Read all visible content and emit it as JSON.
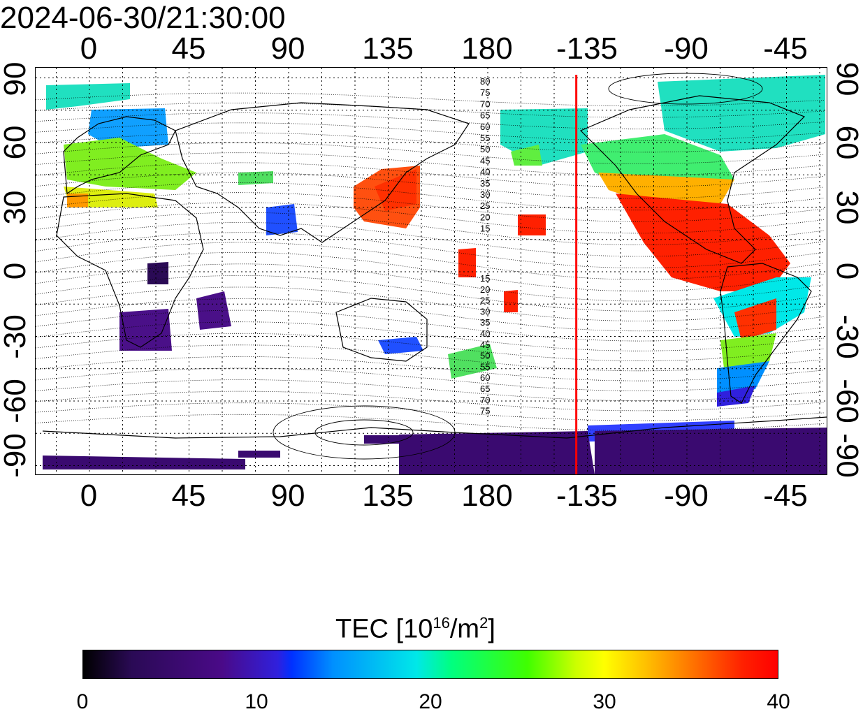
{
  "timestamp": "2024-06-30/21:30:00",
  "map": {
    "top_lon_labels": [
      "0",
      "45",
      "90",
      "135",
      "180",
      "-135",
      "-90",
      "-45"
    ],
    "bottom_lon_labels": [
      "0",
      "45",
      "90",
      "135",
      "180",
      "-135",
      "-90",
      "-45"
    ],
    "left_lat_labels": [
      "90",
      "60",
      "30",
      "0",
      "-30",
      "-60",
      "-90"
    ],
    "right_lat_labels": [
      "90",
      "60",
      "30",
      "0",
      "-30",
      "-60",
      "-90"
    ],
    "contour_labels_north": [
      "80",
      "75",
      "70",
      "65",
      "60",
      "55",
      "50",
      "45",
      "40",
      "35",
      "30",
      "25",
      "20",
      "15"
    ],
    "contour_labels_south": [
      "15",
      "20",
      "25",
      "30",
      "35",
      "40",
      "45",
      "50",
      "55",
      "60",
      "65",
      "70",
      "75"
    ],
    "terminator_lon": -140,
    "terminator_color": "#ff0000"
  },
  "colorbar": {
    "title": "TEC  [10",
    "title_sup": "16",
    "title_unit": "/m",
    "title_sup2": "2",
    "title_end": "]",
    "ticks": [
      "0",
      "10",
      "20",
      "30",
      "40"
    ],
    "min": 0,
    "max": 40
  }
}
